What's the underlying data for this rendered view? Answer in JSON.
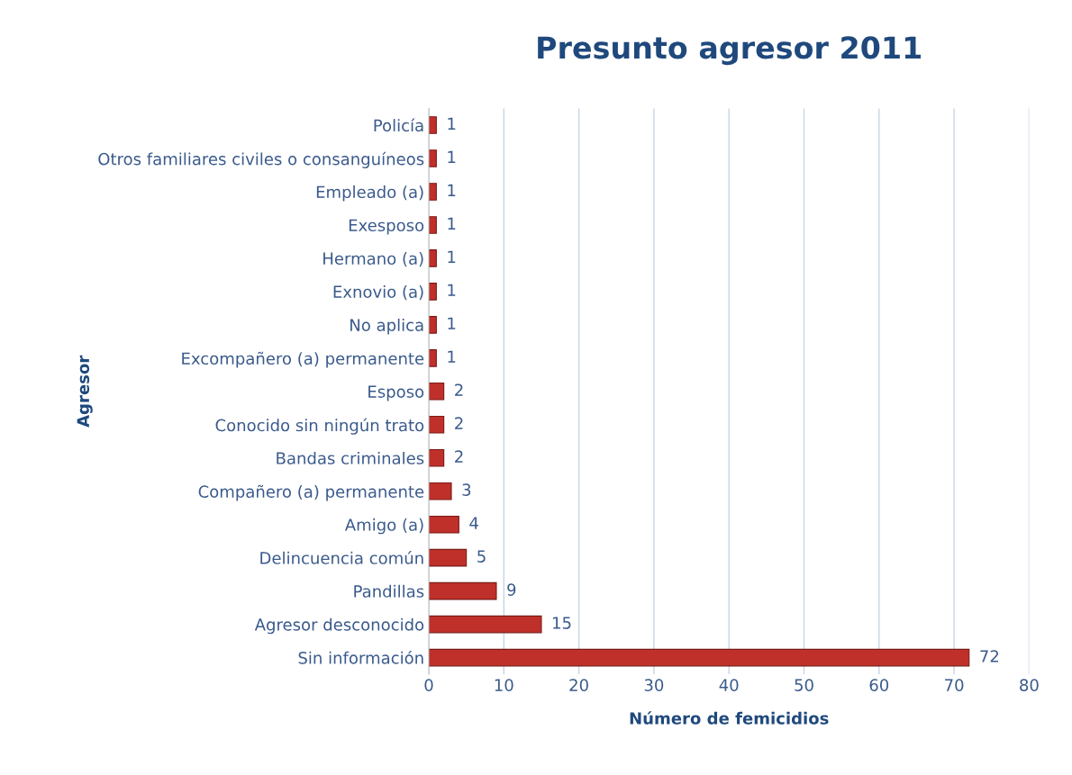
{
  "chart_data": {
    "type": "bar",
    "orientation": "horizontal",
    "title": "Presunto agresor 2011",
    "xlabel": "Número de femicidios",
    "ylabel": "Agresor",
    "categories": [
      "Policía",
      "Otros familiares civiles o consanguíneos",
      "Empleado (a)",
      "Exesposo",
      "Hermano (a)",
      "Exnovio (a)",
      "No aplica",
      "Excompañero (a) permanente",
      "Esposo",
      "Conocido sin ningún trato",
      "Bandas criminales",
      "Compañero (a) permanente",
      "Amigo (a)",
      "Delincuencia común",
      "Pandillas",
      "Agresor desconocido",
      "Sin información"
    ],
    "values": [
      1,
      1,
      1,
      1,
      1,
      1,
      1,
      1,
      2,
      2,
      2,
      3,
      4,
      5,
      9,
      15,
      72
    ],
    "color": "#c0302a",
    "xlim": [
      0,
      80
    ],
    "xticks": [
      0,
      10,
      20,
      30,
      40,
      50,
      60,
      70,
      80
    ],
    "grid": "x",
    "data_labels": true
  }
}
